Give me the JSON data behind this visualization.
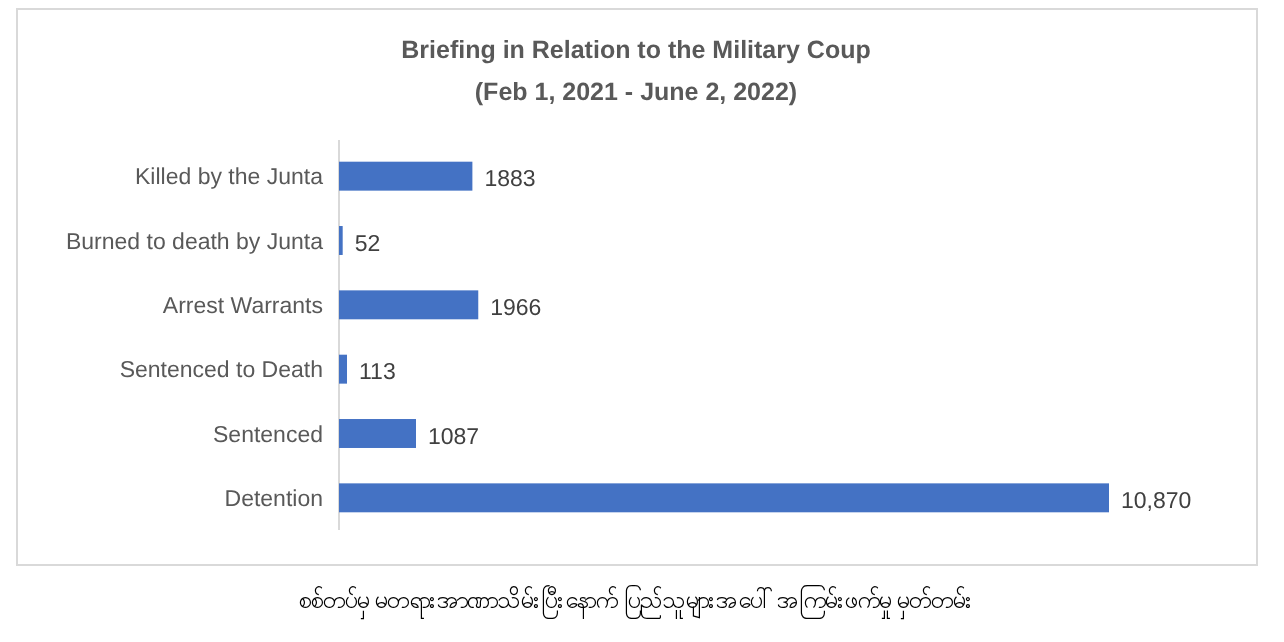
{
  "chart_data": {
    "type": "bar",
    "orientation": "horizontal",
    "title": "Briefing in Relation to the Military Coup",
    "subtitle": "(Feb 1, 2021 - June 2, 2022)",
    "categories": [
      "Killed by the Junta",
      "Burned to death by Junta",
      "Arrest Warrants",
      "Sentenced to Death",
      "Sentenced",
      "Detention"
    ],
    "values": [
      1883,
      52,
      1966,
      113,
      1087,
      10870
    ],
    "value_labels": [
      "1883",
      "52",
      "1966",
      "113",
      "1087",
      "10,870"
    ],
    "color": "#4472c4",
    "annotations": [
      "စစ်တပ်မှ မတရားအာဏာသိမ်းပြီးနောက် ပြည်သူများအပေါ် အကြမ်းဖက်မှု မှတ်တမ်း"
    ]
  }
}
